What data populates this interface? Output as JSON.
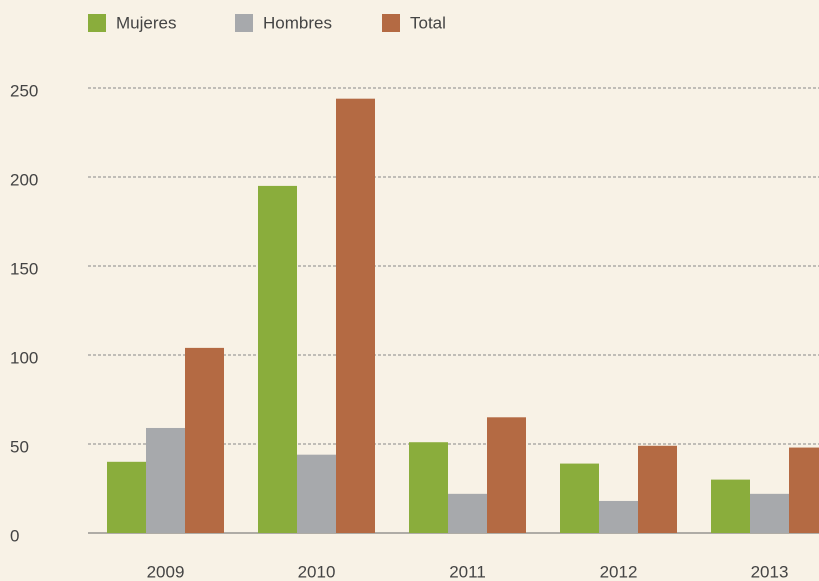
{
  "chart_data": {
    "type": "bar",
    "categories": [
      "2009",
      "2010",
      "2011",
      "2012",
      "2013"
    ],
    "series": [
      {
        "name": "Mujeres",
        "color": "#8aad3c",
        "values": [
          40,
          195,
          51,
          39,
          30
        ]
      },
      {
        "name": "Hombres",
        "color": "#a7a9ac",
        "values": [
          59,
          44,
          22,
          18,
          22
        ]
      },
      {
        "name": "Total",
        "color": "#b46a43",
        "values": [
          104,
          244,
          65,
          49,
          48
        ]
      }
    ],
    "ylim": [
      0,
      250
    ],
    "yticks": [
      0,
      50,
      100,
      150,
      200,
      250
    ],
    "grid": true,
    "legend": "top"
  }
}
